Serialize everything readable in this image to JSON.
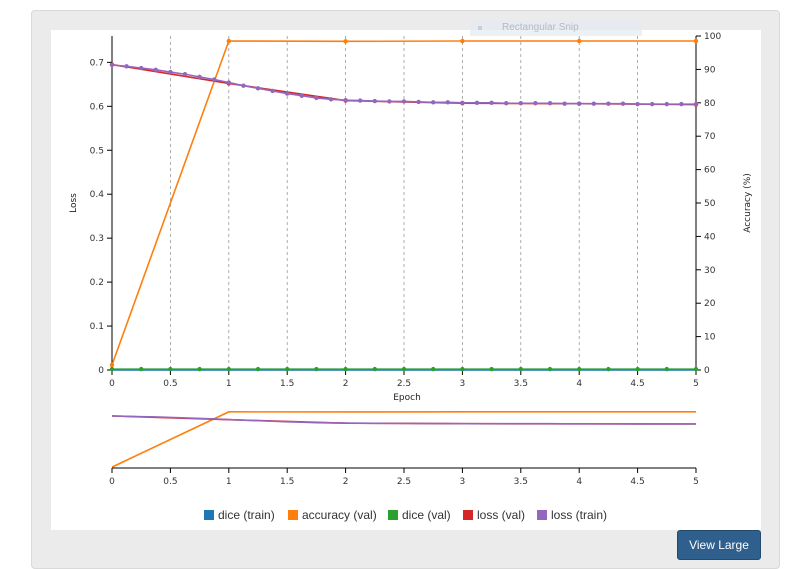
{
  "overlay": {
    "text": "Rectangular Snip"
  },
  "button": {
    "view_large": "View Large"
  },
  "chart_data": {
    "type": "line",
    "xlabel": "Epoch",
    "ylabel_left": "Loss",
    "ylabel_right": "Accuracy (%)",
    "x_ticks": [
      "0",
      "0.5",
      "1",
      "1.5",
      "2",
      "2.5",
      "3",
      "3.5",
      "4",
      "4.5",
      "5"
    ],
    "y_left_ticks": [
      "0",
      "0.1",
      "0.2",
      "0.3",
      "0.4",
      "0.5",
      "0.6",
      "0.7"
    ],
    "y_right_ticks": [
      "0",
      "10",
      "20",
      "30",
      "40",
      "50",
      "60",
      "70",
      "80",
      "90",
      "100"
    ],
    "xlim": [
      0,
      5
    ],
    "ylim_left": [
      0,
      0.76
    ],
    "ylim_right": [
      0,
      100
    ],
    "grid": "vertical dashed",
    "legend_position": "bottom",
    "series": [
      {
        "name": "dice (train)",
        "color": "#1f77b4",
        "axis": "left",
        "marker": "none",
        "x": [
          0,
          5
        ],
        "y": [
          0.0,
          0.0
        ]
      },
      {
        "name": "accuracy (val)",
        "color": "#ff7f0e",
        "axis": "right",
        "marker": "circle",
        "x": [
          0,
          1,
          2,
          3,
          4,
          5
        ],
        "y": [
          1.5,
          98.5,
          98.4,
          98.5,
          98.5,
          98.5
        ]
      },
      {
        "name": "dice (val)",
        "color": "#2ca02c",
        "axis": "left",
        "marker": "circle",
        "x": [
          0,
          0.25,
          0.5,
          0.75,
          1,
          1.25,
          1.5,
          1.75,
          2,
          2.25,
          2.5,
          2.75,
          3,
          3.25,
          3.5,
          3.75,
          4,
          4.25,
          4.5,
          4.75,
          5
        ],
        "y": [
          0.002,
          0.002,
          0.002,
          0.002,
          0.002,
          0.002,
          0.002,
          0.002,
          0.002,
          0.002,
          0.002,
          0.002,
          0.002,
          0.002,
          0.002,
          0.002,
          0.002,
          0.002,
          0.002,
          0.002,
          0.002
        ]
      },
      {
        "name": "loss (val)",
        "color": "#d62728",
        "axis": "left",
        "marker": "circle",
        "x": [
          0,
          1,
          2,
          3,
          4,
          5
        ],
        "y": [
          0.695,
          0.652,
          0.613,
          0.607,
          0.606,
          0.604
        ]
      },
      {
        "name": "loss (train)",
        "color": "#9467bd",
        "axis": "left",
        "marker": "circle",
        "x": [
          0,
          0.125,
          0.25,
          0.375,
          0.5,
          0.625,
          0.75,
          0.875,
          1,
          1.125,
          1.25,
          1.375,
          1.5,
          1.625,
          1.75,
          1.875,
          2,
          2.125,
          2.25,
          2.375,
          2.5,
          2.625,
          2.75,
          2.875,
          3,
          3.125,
          3.25,
          3.375,
          3.5,
          3.625,
          3.75,
          3.875,
          4,
          4.125,
          4.25,
          4.375,
          4.5,
          4.625,
          4.75,
          4.875,
          5
        ],
        "y": [
          0.694,
          0.691,
          0.687,
          0.683,
          0.678,
          0.673,
          0.667,
          0.661,
          0.654,
          0.647,
          0.641,
          0.635,
          0.629,
          0.624,
          0.619,
          0.616,
          0.614,
          0.613,
          0.612,
          0.611,
          0.611,
          0.61,
          0.609,
          0.609,
          0.608,
          0.608,
          0.608,
          0.607,
          0.607,
          0.607,
          0.607,
          0.606,
          0.606,
          0.606,
          0.606,
          0.606,
          0.605,
          0.605,
          0.605,
          0.605,
          0.605
        ]
      }
    ],
    "navigator": {
      "x_ticks": [
        "0",
        "0.5",
        "1",
        "1.5",
        "2",
        "2.5",
        "3",
        "3.5",
        "4",
        "4.5",
        "5"
      ]
    }
  }
}
